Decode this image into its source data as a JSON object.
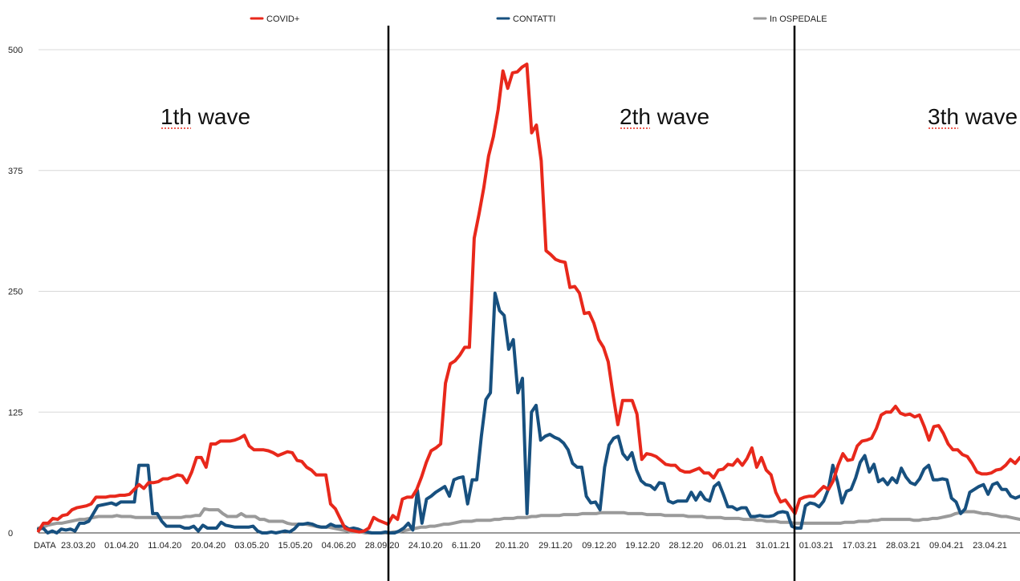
{
  "colors": {
    "covid": "#e8281b",
    "contatti": "#17507f",
    "ospedale": "#9a9a9a",
    "grid": "#d8d8d8"
  },
  "chart_data": {
    "type": "line",
    "y_ticks": [
      "0",
      "125",
      "250",
      "375",
      "500"
    ],
    "ylim": [
      0,
      500
    ],
    "x_label": "DATA",
    "x_ticks": [
      "23.03.20",
      "01.04.20",
      "11.04.20",
      "20.04.20",
      "03.05.20",
      "15.05.20",
      "04.06.20",
      "28.09.20",
      "24.10.20",
      "6.11.20",
      "20.11.20",
      "29.11.20",
      "09.12.20",
      "19.12.20",
      "28.12.20",
      "06.01.21",
      "31.01.21",
      "01.03.21",
      "17.03.21",
      "28.03.21",
      "09.04.21",
      "23.04.21"
    ],
    "legend": [
      "COVID+",
      "CONTATTI",
      "In OSPEDALE"
    ],
    "annotations": [
      "1th wave",
      "2th wave",
      "3th wave"
    ],
    "series": [
      {
        "name": "COVID+",
        "values": [
          2,
          10,
          10,
          15,
          14,
          18,
          19,
          24,
          26,
          27,
          28,
          30,
          37,
          37,
          37,
          38,
          38,
          39,
          39,
          40,
          45,
          50,
          46,
          52,
          52,
          53,
          56,
          56,
          58,
          60,
          59,
          52,
          63,
          78,
          78,
          68,
          92,
          92,
          95,
          95,
          95,
          96,
          98,
          101,
          90,
          86,
          86,
          86,
          85,
          83,
          80,
          82,
          84,
          83,
          75,
          74,
          68,
          65,
          60,
          60,
          60,
          30,
          25,
          15,
          5,
          3,
          2,
          1,
          2,
          5,
          16,
          13,
          11,
          9,
          18,
          14,
          35,
          37,
          37,
          45,
          58,
          73,
          85,
          88,
          92,
          155,
          175,
          178,
          184,
          192,
          192,
          305,
          330,
          357,
          390,
          410,
          438,
          478,
          460,
          476,
          477,
          482,
          485,
          414,
          422,
          385,
          292,
          288,
          283,
          281,
          280,
          254,
          255,
          248,
          227,
          228,
          217,
          200,
          192,
          177,
          143,
          112,
          137,
          137,
          137,
          123,
          76,
          82,
          81,
          79,
          75,
          71,
          70,
          70,
          65,
          63,
          63,
          65,
          67,
          62,
          62,
          57,
          65,
          66,
          71,
          70,
          76,
          70,
          77,
          88,
          68,
          78,
          65,
          60,
          42,
          32,
          34,
          27,
          20,
          35,
          37,
          38,
          38,
          43,
          48,
          45,
          54,
          70,
          82,
          75,
          76,
          90,
          95,
          96,
          98,
          108,
          122,
          125,
          125,
          131,
          124,
          122,
          123,
          120,
          122,
          110,
          96,
          110,
          111,
          103,
          92,
          86,
          86,
          81,
          79,
          72,
          63,
          61,
          61,
          62,
          65,
          66,
          70,
          76,
          72,
          78
        ]
      },
      {
        "name": "CONTATTI",
        "values": [
          4,
          5,
          0,
          2,
          0,
          4,
          3,
          4,
          2,
          10,
          10,
          12,
          20,
          28,
          29,
          30,
          31,
          29,
          32,
          32,
          32,
          32,
          70,
          70,
          70,
          20,
          20,
          12,
          7,
          7,
          7,
          7,
          5,
          5,
          7,
          2,
          8,
          5,
          5,
          5,
          11,
          8,
          7,
          6,
          6,
          6,
          6,
          7,
          2,
          0,
          0,
          1,
          0,
          1,
          2,
          1,
          4,
          9,
          9,
          10,
          9,
          7,
          6,
          6,
          9,
          7,
          7,
          7,
          4,
          5,
          4,
          2,
          1,
          0,
          0,
          0,
          1,
          0,
          0,
          2,
          5,
          10,
          3,
          44,
          10,
          35,
          38,
          42,
          45,
          48,
          38,
          55,
          57,
          58,
          30,
          55,
          55,
          100,
          138,
          145,
          248,
          230,
          225,
          190,
          200,
          145,
          160,
          20,
          125,
          132,
          96,
          100,
          102,
          99,
          97,
          93,
          86,
          72,
          68,
          68,
          38,
          31,
          32,
          24,
          68,
          91,
          98,
          100,
          82,
          76,
          83,
          65,
          54,
          50,
          49,
          45,
          52,
          51,
          33,
          31,
          33,
          33,
          33,
          42,
          34,
          42,
          35,
          33,
          48,
          52,
          40,
          27,
          27,
          24,
          26,
          26,
          17,
          17,
          18,
          17,
          17,
          18,
          21,
          22,
          21,
          7,
          5,
          5,
          28,
          31,
          30,
          27,
          33,
          45,
          70,
          53,
          31,
          43,
          45,
          57,
          73,
          80,
          63,
          71,
          53,
          56,
          50,
          57,
          52,
          67,
          58,
          52,
          50,
          56,
          66,
          70,
          55,
          55,
          56,
          55,
          36,
          32,
          20,
          25,
          42,
          45,
          48,
          50,
          40,
          50,
          52,
          45,
          45,
          38,
          36,
          38
        ]
      },
      {
        "name": "In OSPEDALE",
        "values": [
          5,
          6,
          8,
          9,
          10,
          10,
          11,
          12,
          13,
          14,
          14,
          15,
          16,
          17,
          17,
          17,
          17,
          18,
          17,
          17,
          17,
          16,
          16,
          16,
          16,
          16,
          16,
          16,
          16,
          16,
          16,
          16,
          17,
          17,
          18,
          18,
          25,
          24,
          24,
          24,
          20,
          17,
          17,
          17,
          20,
          17,
          17,
          17,
          14,
          14,
          12,
          12,
          12,
          12,
          10,
          9,
          9,
          9,
          9,
          8,
          7,
          6,
          6,
          6,
          5,
          4,
          3,
          2,
          1,
          1,
          1,
          0,
          0,
          0,
          0,
          0,
          0,
          1,
          1,
          2,
          3,
          4,
          5,
          6,
          6,
          7,
          7,
          8,
          9,
          9,
          10,
          11,
          12,
          12,
          12,
          13,
          13,
          13,
          13,
          14,
          14,
          15,
          15,
          15,
          16,
          16,
          16,
          17,
          17,
          18,
          18,
          18,
          18,
          18,
          19,
          19,
          19,
          19,
          20,
          20,
          20,
          20,
          21,
          21,
          21,
          21,
          21,
          21,
          20,
          20,
          20,
          20,
          19,
          19,
          19,
          19,
          18,
          18,
          18,
          18,
          18,
          17,
          17,
          17,
          17,
          16,
          16,
          16,
          16,
          15,
          15,
          15,
          15,
          14,
          14,
          14,
          13,
          13,
          12,
          12,
          12,
          11,
          11,
          11,
          10,
          10,
          10,
          10,
          10,
          10,
          10,
          10,
          10,
          10,
          10,
          11,
          11,
          11,
          12,
          12,
          12,
          13,
          13,
          14,
          14,
          14,
          14,
          14,
          14,
          14,
          13,
          13,
          14,
          14,
          15,
          15,
          16,
          17,
          18,
          20,
          21,
          22,
          22,
          22,
          21,
          20,
          20,
          19,
          18,
          17,
          17,
          16,
          15,
          14
        ]
      }
    ]
  }
}
